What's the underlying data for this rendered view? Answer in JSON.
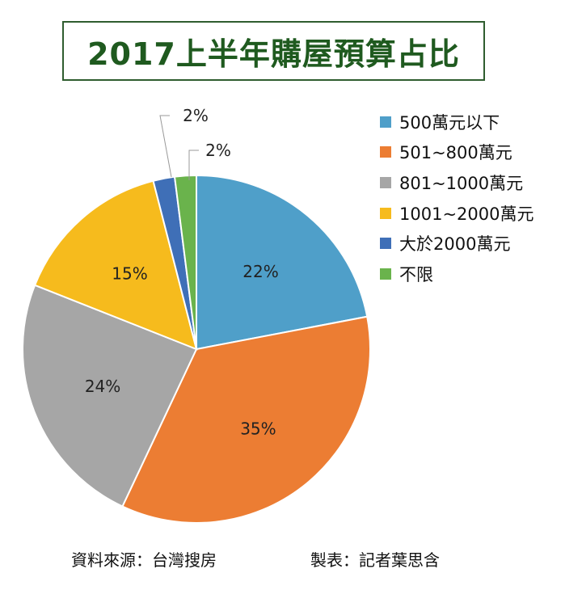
{
  "title": "2017上半年購屋預算占比",
  "chart_data": {
    "type": "pie",
    "title": "2017上半年購屋預算占比",
    "categories": [
      "500萬元以下",
      "501~800萬元",
      "801~1000萬元",
      "1001~2000萬元",
      "大於2000萬元",
      "不限"
    ],
    "values": [
      22,
      35,
      24,
      15,
      2,
      2
    ],
    "labels": [
      "22%",
      "35%",
      "24%",
      "15%",
      "2%",
      "2%"
    ],
    "colors": [
      "#4f9fc9",
      "#ec7d33",
      "#a6a6a6",
      "#f6bb1d",
      "#3f6fb7",
      "#6ab34c"
    ],
    "legend_position": "top-right"
  },
  "footer": {
    "source": "資料來源：台灣搜房",
    "maker": "製表：記者葉思含"
  }
}
